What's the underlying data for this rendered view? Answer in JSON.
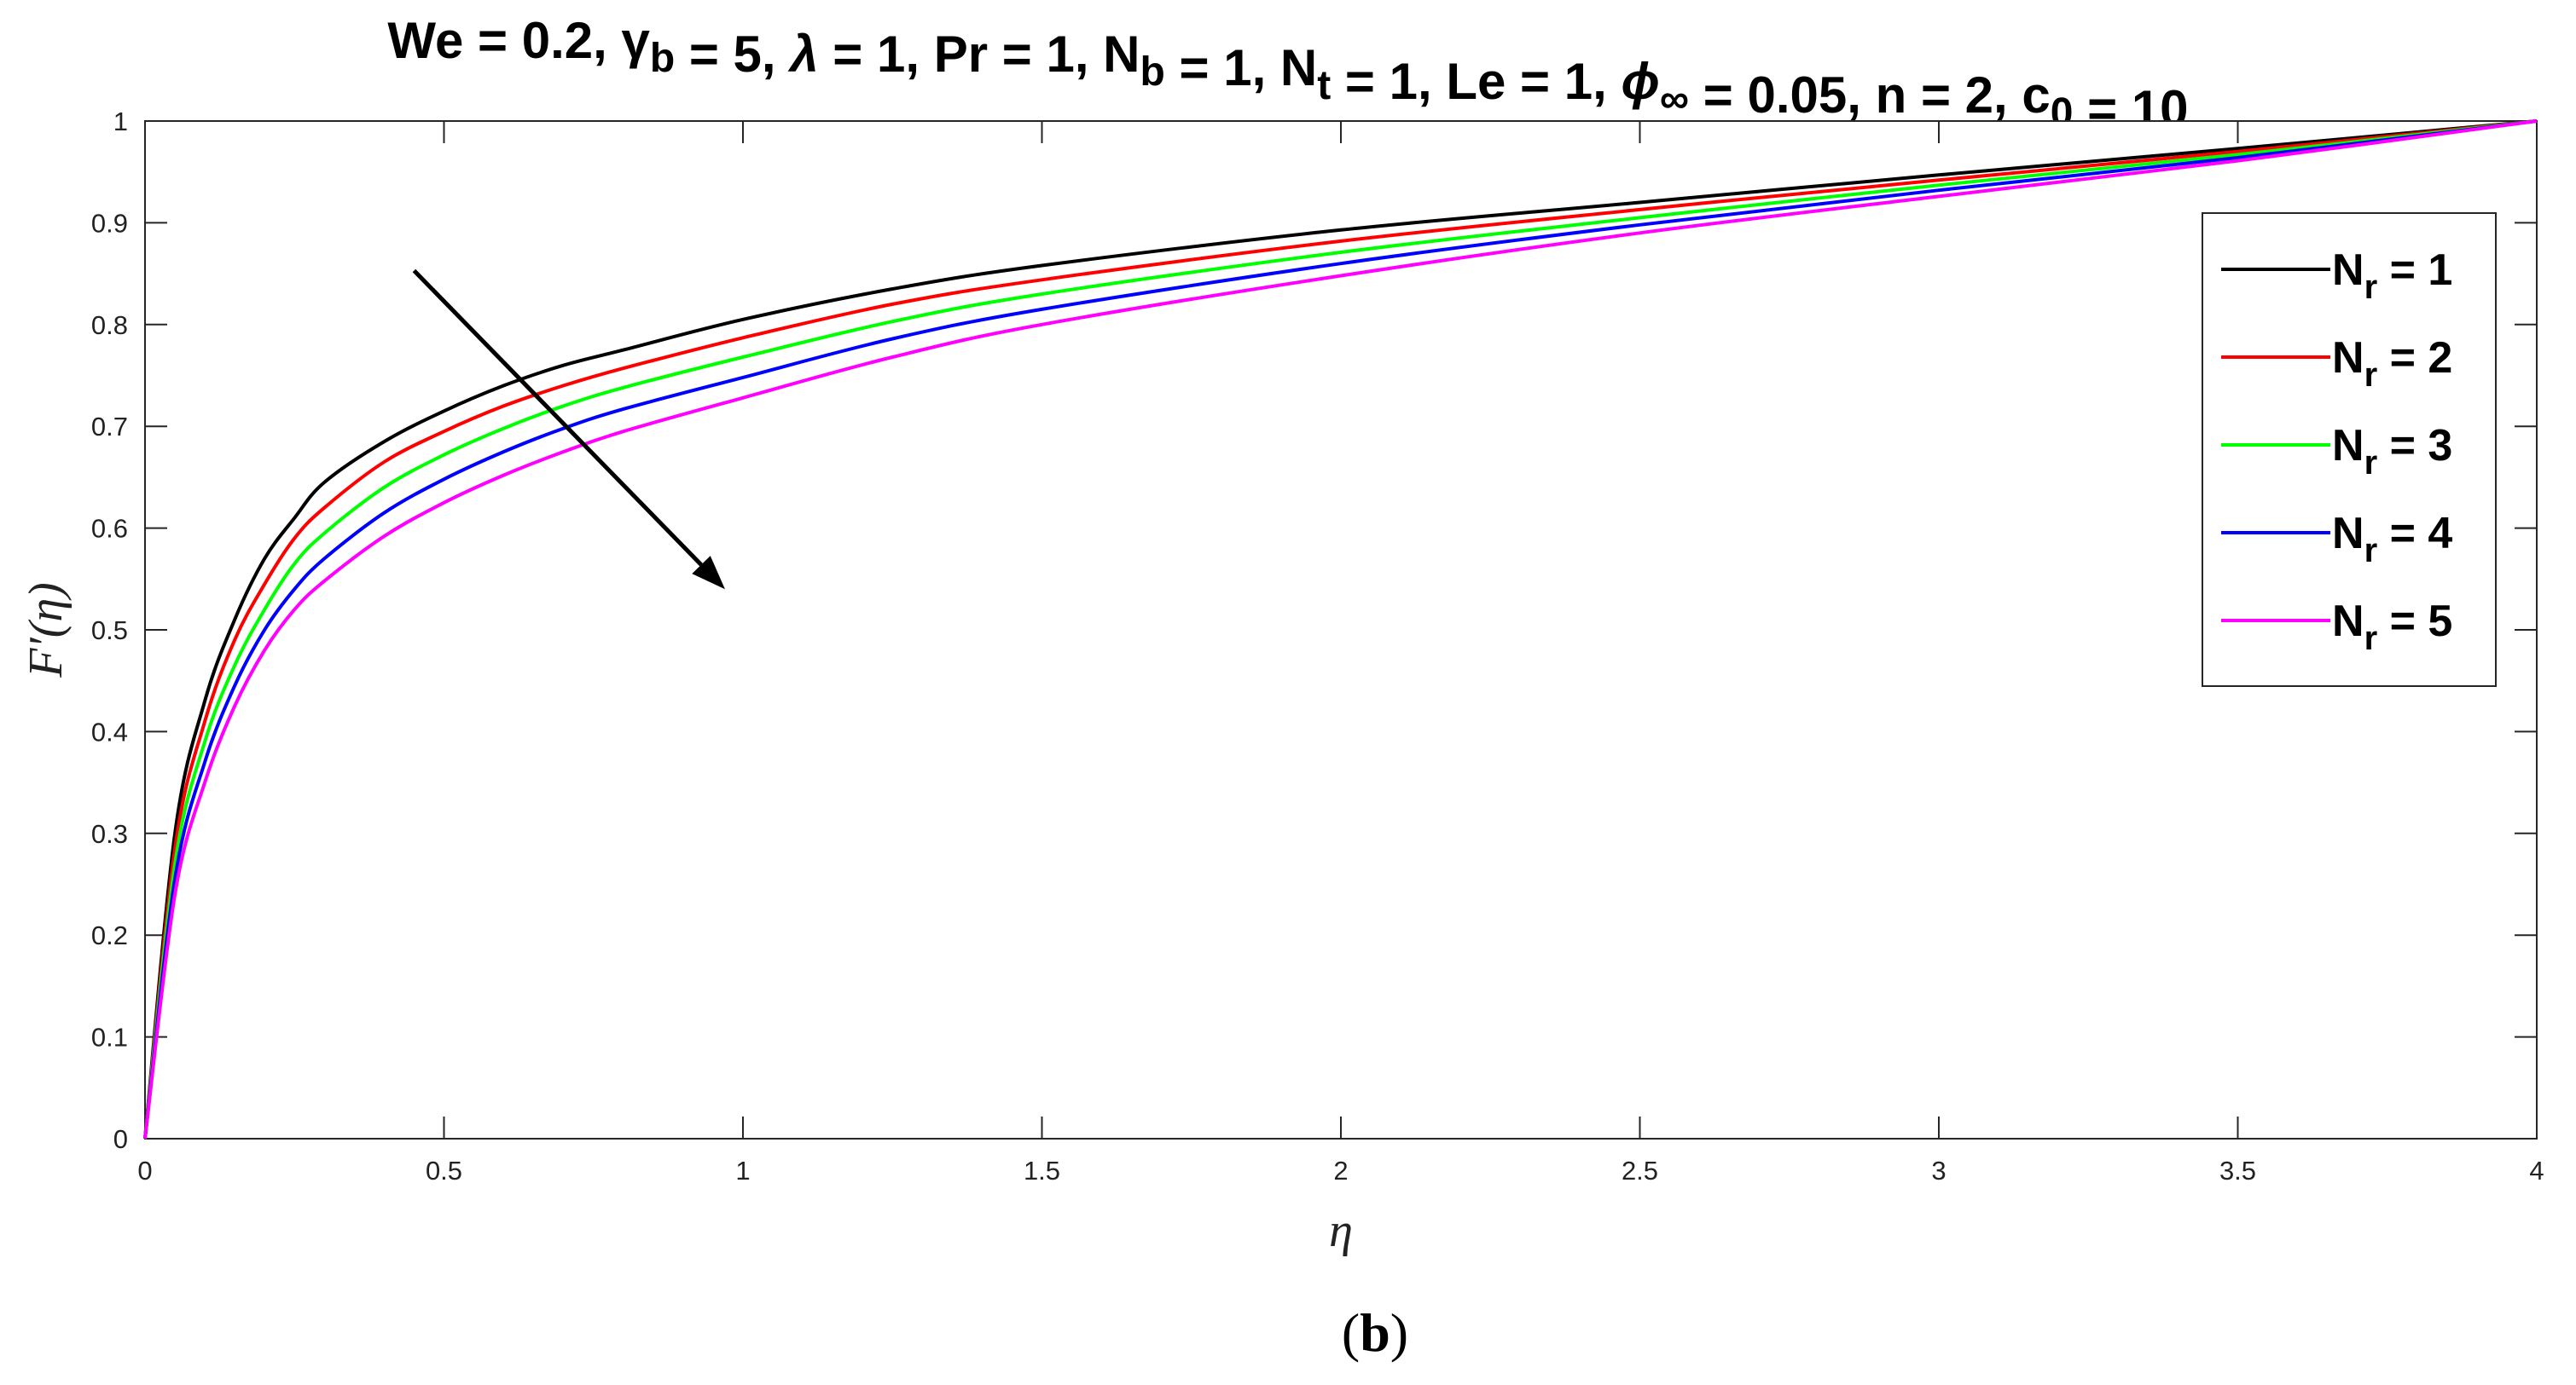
{
  "chart_data": {
    "type": "line",
    "title_parts": [
      {
        "text": "We = 0.2,  "
      },
      {
        "text": "γ"
      },
      {
        "text": "b",
        "sub": true
      },
      {
        "text": " = 5,  "
      },
      {
        "text": "λ",
        "italic": true
      },
      {
        "text": " = 1,  Pr = 1,  N"
      },
      {
        "text": "b",
        "sub": true
      },
      {
        "text": " = 1,  N"
      },
      {
        "text": "t",
        "sub": true
      },
      {
        "text": " = 1,  Le = 1,  "
      },
      {
        "text": "ϕ",
        "italic": true
      },
      {
        "text": "∞",
        "sub": true
      },
      {
        "text": " = 0.05,  n = 2,  c"
      },
      {
        "text": "0",
        "sub": true
      },
      {
        "text": " = 10"
      }
    ],
    "xlabel": "η",
    "ylabel": "F′(η)",
    "xlim": [
      0,
      4
    ],
    "ylim": [
      0,
      1
    ],
    "xticks": [
      0,
      0.5,
      1,
      1.5,
      2,
      2.5,
      3,
      3.5,
      4
    ],
    "yticks": [
      0,
      0.1,
      0.2,
      0.3,
      0.4,
      0.5,
      0.6,
      0.7,
      0.8,
      0.9,
      1
    ],
    "grid": false,
    "legend_position": "top-right",
    "caption_parts": [
      {
        "text": "("
      },
      {
        "text": "b",
        "bold": true
      },
      {
        "text": ")"
      }
    ],
    "x": [
      0,
      0.05,
      0.1,
      0.15,
      0.2,
      0.25,
      0.3,
      0.4,
      0.5,
      0.6,
      0.7,
      0.8,
      1.0,
      1.25,
      1.5,
      2.0,
      2.5,
      3.0,
      3.5,
      4.0
    ],
    "series": [
      {
        "name": "N_r = 1",
        "legend_main": "N",
        "legend_sub": "r",
        "legend_rest": " = 1",
        "color": "#000000",
        "values": [
          0,
          0.3,
          0.43,
          0.51,
          0.57,
          0.61,
          0.645,
          0.685,
          0.715,
          0.74,
          0.76,
          0.775,
          0.805,
          0.835,
          0.858,
          0.893,
          0.92,
          0.947,
          0.973,
          1.0
        ]
      },
      {
        "name": "N_r = 2",
        "legend_main": "N",
        "legend_sub": "r",
        "legend_rest": " = 2",
        "color": "#ff0000",
        "values": [
          0,
          0.285,
          0.41,
          0.49,
          0.545,
          0.59,
          0.62,
          0.665,
          0.695,
          0.72,
          0.74,
          0.757,
          0.787,
          0.82,
          0.844,
          0.882,
          0.913,
          0.942,
          0.97,
          1.0
        ]
      },
      {
        "name": "N_r = 3",
        "legend_main": "N",
        "legend_sub": "r",
        "legend_rest": " = 3",
        "color": "#00ff00",
        "values": [
          0,
          0.27,
          0.39,
          0.465,
          0.52,
          0.565,
          0.595,
          0.64,
          0.672,
          0.698,
          0.72,
          0.738,
          0.768,
          0.803,
          0.83,
          0.871,
          0.905,
          0.937,
          0.967,
          1.0
        ]
      },
      {
        "name": "N_r = 4",
        "legend_main": "N",
        "legend_sub": "r",
        "legend_rest": " = 4",
        "color": "#0000ff",
        "values": [
          0,
          0.255,
          0.37,
          0.445,
          0.5,
          0.54,
          0.57,
          0.615,
          0.648,
          0.675,
          0.698,
          0.717,
          0.748,
          0.786,
          0.815,
          0.86,
          0.898,
          0.932,
          0.964,
          1.0
        ]
      },
      {
        "name": "N_r = 5",
        "legend_main": "N",
        "legend_sub": "r",
        "legend_rest": " = 5",
        "color": "#ff00ff",
        "values": [
          0,
          0.24,
          0.35,
          0.425,
          0.48,
          0.52,
          0.548,
          0.592,
          0.625,
          0.652,
          0.675,
          0.695,
          0.728,
          0.768,
          0.8,
          0.848,
          0.89,
          0.926,
          0.961,
          1.0
        ]
      }
    ],
    "annotations": [
      {
        "type": "arrow",
        "from": [
          0.45,
          0.853
        ],
        "to": [
          0.97,
          0.54
        ],
        "color": "#000000"
      }
    ]
  }
}
